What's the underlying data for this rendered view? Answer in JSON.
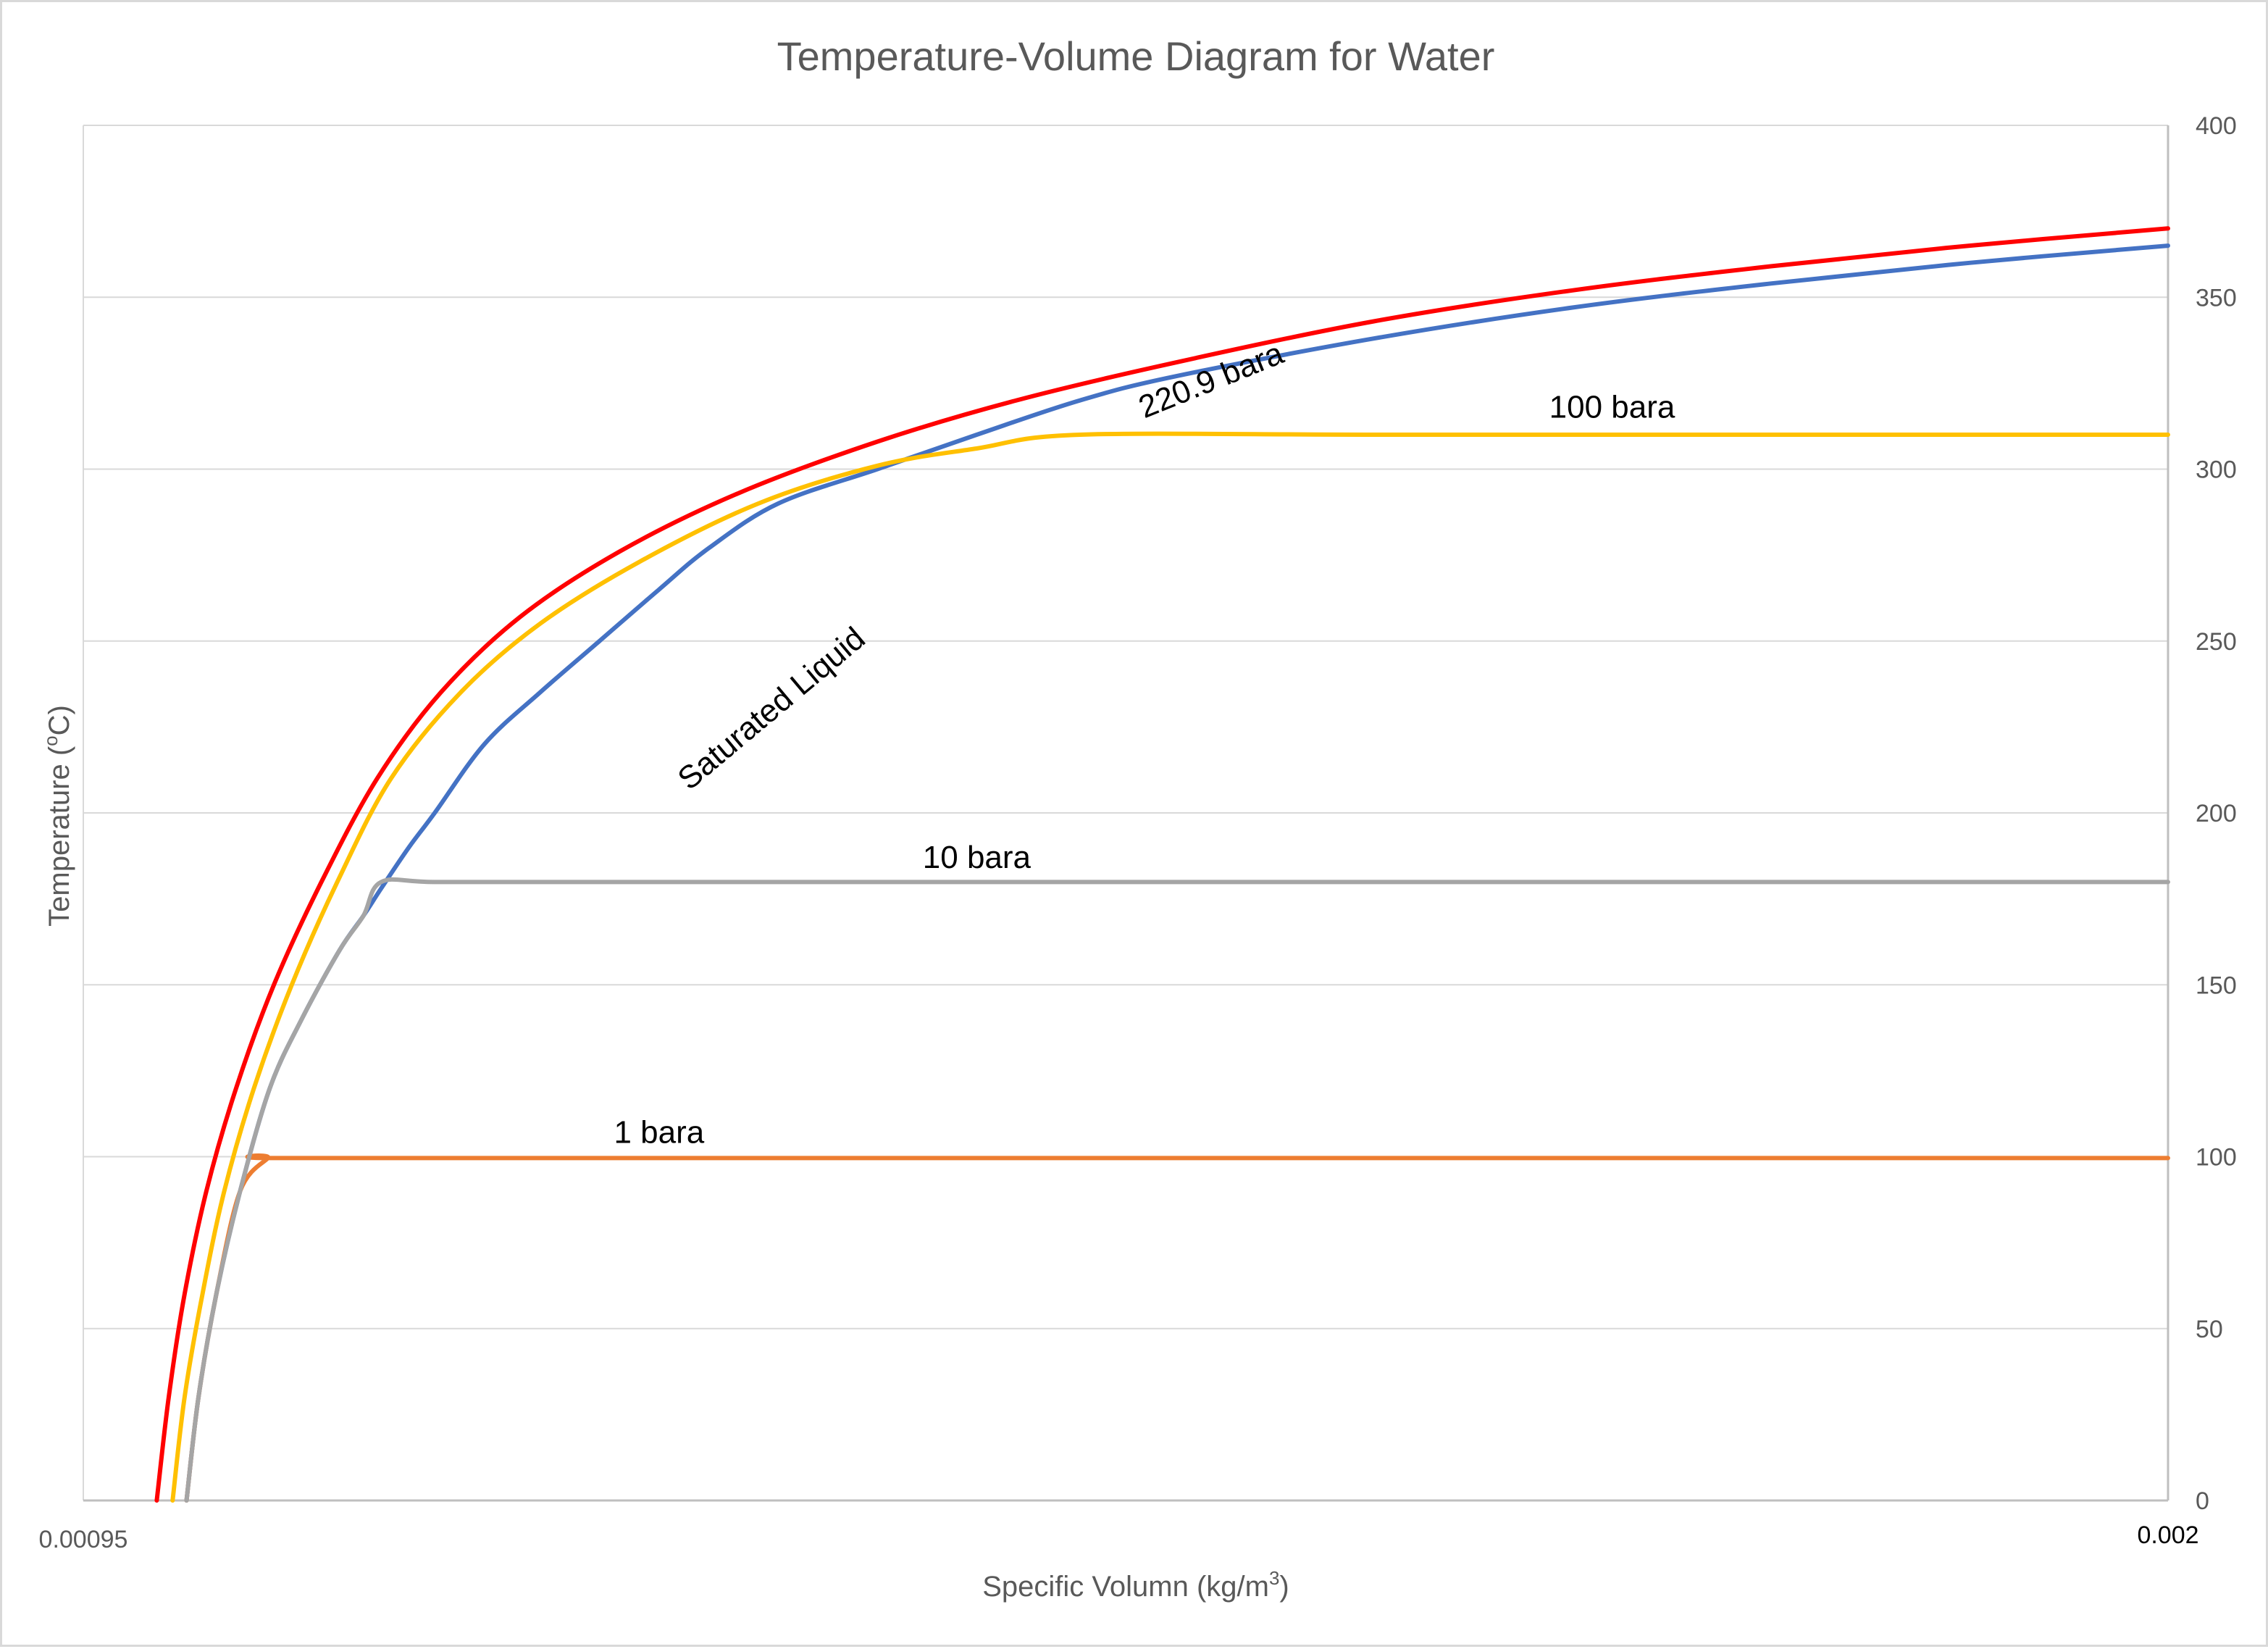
{
  "chart_data": {
    "type": "line",
    "title": "Temperature-Volume Diagram for Water",
    "xlabel_main": "Specific Volumn (kg/m",
    "xlabel_sup": "3",
    "xlabel_end": ")",
    "ylabel_main": "Temperature (",
    "ylabel_sup": "o",
    "ylabel_end": "C)",
    "xlim": [
      0.00095,
      0.002
    ],
    "ylim": [
      0,
      400
    ],
    "x_tick_labels": [
      "0.00095",
      "0.002"
    ],
    "y_ticks": [
      0,
      50,
      100,
      150,
      200,
      250,
      300,
      350,
      400
    ],
    "y_axis_side": "right",
    "grid": "horizontal",
    "legend": "none",
    "series": [
      {
        "color": "#4472c4",
        "x": [
          0.001002,
          0.001008,
          0.001017,
          0.001029,
          0.001044,
          0.00106,
          0.001079,
          0.001091,
          0.0011,
          0.001114,
          0.001127,
          0.001152,
          0.00118,
          0.00121,
          0.00124,
          0.001265,
          0.0013,
          0.00135,
          0.0014,
          0.001452,
          0.0015,
          0.0016,
          0.0017,
          0.0018,
          0.0019,
          0.002
        ],
        "y": [
          0,
          30,
          60,
          90,
          120,
          140,
          160,
          170,
          178,
          190,
          200,
          220,
          235,
          250,
          265,
          277,
          290,
          300,
          310,
          320,
          327,
          338,
          347,
          354,
          360,
          365
        ]
      },
      {
        "color": "#ed7d31",
        "x": [
          0.001002,
          0.001008,
          0.001017,
          0.001029,
          0.001043,
          0.001044,
          0.0012,
          0.0014,
          0.0016,
          0.0018,
          0.002
        ],
        "y": [
          0,
          30,
          60,
          90,
          99.6,
          99.6,
          99.6,
          99.6,
          99.6,
          99.6,
          99.6
        ]
      },
      {
        "color": "#a5a5a5",
        "x": [
          0.001002,
          0.001008,
          0.001017,
          0.001029,
          0.001044,
          0.00106,
          0.001079,
          0.001091,
          0.0011,
          0.001127,
          0.0012,
          0.0014,
          0.0016,
          0.0018,
          0.002
        ],
        "y": [
          0,
          30,
          60,
          90,
          120,
          140,
          160,
          170,
          179.9,
          179.9,
          179.9,
          179.9,
          179.9,
          179.9,
          179.9
        ]
      },
      {
        "color": "#ffc000",
        "x": [
          0.000995,
          0.001001,
          0.00101,
          0.001021,
          0.001036,
          0.001055,
          0.001078,
          0.001105,
          0.00114,
          0.00118,
          0.00123,
          0.00129,
          0.00135,
          0.0014,
          0.001452,
          0.0016,
          0.0018,
          0.002
        ],
        "y": [
          0,
          30,
          60,
          90,
          120,
          150,
          180,
          210,
          235,
          255,
          273,
          290,
          301,
          306,
          310,
          310,
          310,
          310
        ]
      },
      {
        "color": "#ff0000",
        "x": [
          0.000987,
          0.000993,
          0.001001,
          0.001012,
          0.001027,
          0.001046,
          0.00107,
          0.001098,
          0.00113,
          0.00117,
          0.00122,
          0.00128,
          0.00135,
          0.00142,
          0.0015,
          0.0016,
          0.0017,
          0.0018,
          0.0019,
          0.002
        ],
        "y": [
          0,
          30,
          60,
          90,
          120,
          150,
          180,
          210,
          235,
          257,
          276,
          293,
          308,
          320,
          331,
          343,
          352,
          359,
          365,
          370
        ]
      }
    ],
    "annotations": [
      {
        "text": "220.9 bara",
        "x": 0.00152,
        "y": 323,
        "angle": -22
      },
      {
        "text": "100 bara",
        "x": 0.00172,
        "y": 315,
        "angle": 0
      },
      {
        "text": "Saturated Liquid",
        "x": 0.0013,
        "y": 228,
        "angle": -40
      },
      {
        "text": "10 bara",
        "x": 0.0014,
        "y": 184,
        "angle": 0
      },
      {
        "text": "1 bara",
        "x": 0.00124,
        "y": 104,
        "angle": 0
      }
    ]
  }
}
